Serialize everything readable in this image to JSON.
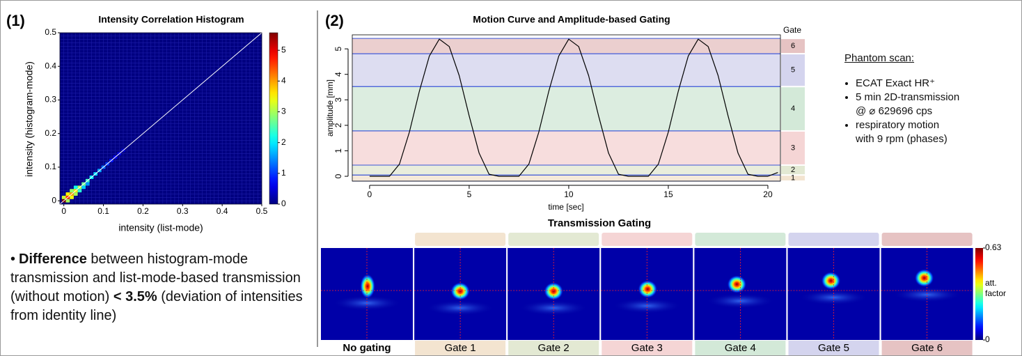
{
  "panel_labels": [
    "(1)",
    "(2)"
  ],
  "chart_data": [
    {
      "type": "heatmap",
      "title": "Intensity Correlation Histogram",
      "x_label": "intensity (list-mode)",
      "y_label": "intensity (histogram-mode)",
      "xlim": [
        -0.01,
        0.5
      ],
      "ylim": [
        -0.01,
        0.5
      ],
      "xticks": [
        0,
        0.1,
        0.2,
        0.3,
        0.4,
        0.5
      ],
      "yticks": [
        0,
        0.1,
        0.2,
        0.3,
        0.4,
        0.5
      ],
      "x": [
        0,
        0.01,
        0,
        0.01,
        0.02,
        0.01,
        0.02,
        0.03,
        0.02,
        0.03,
        0.04,
        0.03,
        0.04,
        0.05,
        0.05,
        0.06,
        0.06,
        0.07,
        0.08,
        0.09,
        0.1,
        0.11,
        0.12,
        0.13,
        0.14,
        0.15
      ],
      "y": [
        0,
        0,
        0.01,
        0.01,
        0.01,
        0.02,
        0.02,
        0.02,
        0.03,
        0.03,
        0.03,
        0.04,
        0.04,
        0.04,
        0.05,
        0.05,
        0.06,
        0.07,
        0.08,
        0.09,
        0.1,
        0.11,
        0.12,
        0.13,
        0.14,
        0.15
      ],
      "values": [
        5.6,
        3.0,
        3.2,
        4.6,
        3.4,
        3.5,
        4.0,
        3.0,
        2.9,
        3.6,
        2.3,
        2.2,
        3.1,
        1.8,
        2.7,
        1.5,
        2.4,
        2.1,
        1.9,
        1.6,
        1.3,
        1.0,
        0.8,
        0.6,
        0.5,
        0.4
      ],
      "colormap": "jet",
      "colorbar": {
        "lim": [
          0,
          5.57
        ],
        "ticks": [
          0,
          1,
          2,
          3,
          4,
          5
        ]
      }
    },
    {
      "type": "line",
      "title": "Motion Curve and Amplitude-based Gating",
      "x_label": "time [sec]",
      "y_label": "amplitude [mm]",
      "xlim": [
        -0.87,
        20.63
      ],
      "ylim": [
        -0.19,
        5.55
      ],
      "xticks": [
        0,
        5,
        10,
        15,
        20
      ],
      "yticks": [
        0,
        1,
        2,
        3,
        4,
        5
      ],
      "x": [
        0,
        0.5,
        1,
        1.5,
        2,
        2.5,
        3,
        3.5,
        4,
        4.5,
        5,
        5.5,
        6,
        6.5,
        7,
        7.5,
        8,
        8.5,
        9,
        9.5,
        10,
        10.5,
        11,
        11.5,
        12,
        12.5,
        13,
        13.5,
        14,
        14.5,
        15,
        15.5,
        16,
        16.5,
        17,
        17.5,
        18,
        18.5,
        19,
        19.5,
        20,
        20.5
      ],
      "values": [
        0,
        0,
        0,
        0.48,
        1.74,
        3.34,
        4.72,
        5.38,
        5.09,
        3.95,
        2.37,
        0.91,
        0.08,
        0,
        0,
        0,
        0.48,
        1.74,
        3.34,
        4.72,
        5.38,
        5.09,
        3.95,
        2.37,
        0.91,
        0.08,
        0,
        0,
        0,
        0.48,
        1.74,
        3.34,
        4.72,
        5.38,
        5.09,
        3.95,
        2.37,
        0.91,
        0.08,
        0,
        0,
        0.15
      ],
      "color": "#000000",
      "gate_title": "Gate",
      "gate_line_color": "#3a55d8",
      "gates": [
        {
          "label": "1",
          "range": [
            -0.19,
            0.05
          ],
          "color": "#f3e4d0"
        },
        {
          "label": "2",
          "range": [
            0.05,
            0.44
          ],
          "color": "#e3e9d3"
        },
        {
          "label": "3",
          "range": [
            0.44,
            1.78
          ],
          "color": "#f5d5d5"
        },
        {
          "label": "4",
          "range": [
            1.78,
            3.52
          ],
          "color": "#d3e9d8"
        },
        {
          "label": "5",
          "range": [
            3.52,
            4.81
          ],
          "color": "#d4d4ee"
        },
        {
          "label": "6",
          "range": [
            4.81,
            5.41
          ],
          "color": "#e6c3c3"
        }
      ]
    }
  ],
  "transmission": {
    "title": "Transmission Gating",
    "images": [
      {
        "label": "No gating"
      },
      {
        "label": "Gate 1",
        "color": "#f3e4d0"
      },
      {
        "label": "Gate 2",
        "color": "#e3e9d3"
      },
      {
        "label": "Gate 3",
        "color": "#f5d5d5"
      },
      {
        "label": "Gate 4",
        "color": "#d3e9d8"
      },
      {
        "label": "Gate 5",
        "color": "#d4d4ee"
      },
      {
        "label": "Gate 6",
        "color": "#e6c3c3"
      }
    ],
    "colorbar": {
      "lim": [
        0,
        0.63
      ],
      "ticks": [
        0,
        0.63
      ],
      "label": "att. factor"
    }
  },
  "note": {
    "bold_term": "Difference",
    "text": "between histogram-mode transmission and list-mode-based transmission (without motion)",
    "bold_value": "< 3.5%",
    "tail": "(deviation of intensities from identity line)"
  },
  "phantom": {
    "heading": "Phantom scan:",
    "items": [
      [
        "ECAT Exact HR⁺"
      ],
      [
        "5 min 2D-transmission",
        "@ ⌀ 629696 cps"
      ],
      [
        "respiratory motion",
        "with 9 rpm (phases)"
      ]
    ]
  }
}
